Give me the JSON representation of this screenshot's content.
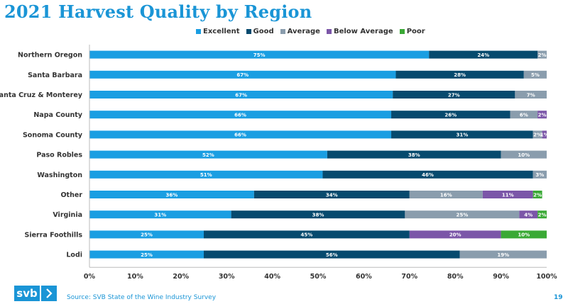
{
  "header": {
    "title": "2021 Harvest Quality by Region"
  },
  "footer": {
    "logo_text": "svb",
    "source": "Source: SVB State of the Wine Industry Survey",
    "page_number": "19"
  },
  "colors": {
    "Excellent": "#1a9ee2",
    "Good": "#064a6e",
    "Average": "#8a9dad",
    "Below Average": "#7b56a8",
    "Poor": "#3aa935"
  },
  "chart_data": {
    "type": "bar",
    "orientation": "horizontal",
    "stacked": true,
    "title": "2021 Harvest Quality by Region",
    "categories": [
      "Northern Oregon",
      "Santa Barbara",
      "Santa Cruz & Monterey",
      "Napa County",
      "Sonoma County",
      "Paso Robles",
      "Washington",
      "Other",
      "Virginia",
      "Sierra Foothills",
      "Lodi"
    ],
    "series": [
      {
        "name": "Excellent",
        "values": [
          75,
          67,
          67,
          66,
          66,
          52,
          51,
          36,
          31,
          25,
          25
        ]
      },
      {
        "name": "Good",
        "values": [
          24,
          28,
          27,
          26,
          31,
          38,
          46,
          34,
          38,
          45,
          56
        ]
      },
      {
        "name": "Average",
        "values": [
          2,
          5,
          7,
          6,
          2,
          10,
          3,
          16,
          25,
          0,
          19
        ]
      },
      {
        "name": "Below Average",
        "values": [
          0,
          0,
          0,
          2,
          1,
          0,
          0,
          11,
          4,
          20,
          0
        ]
      },
      {
        "name": "Poor",
        "values": [
          0,
          0,
          0,
          0,
          0,
          0,
          0,
          2,
          2,
          10,
          0
        ]
      }
    ],
    "xlim": [
      0,
      100
    ],
    "xticks": [
      "0%",
      "10%",
      "20%",
      "30%",
      "40%",
      "50%",
      "60%",
      "70%",
      "80%",
      "90%",
      "100%"
    ],
    "legend": "top-center",
    "grid": false
  }
}
